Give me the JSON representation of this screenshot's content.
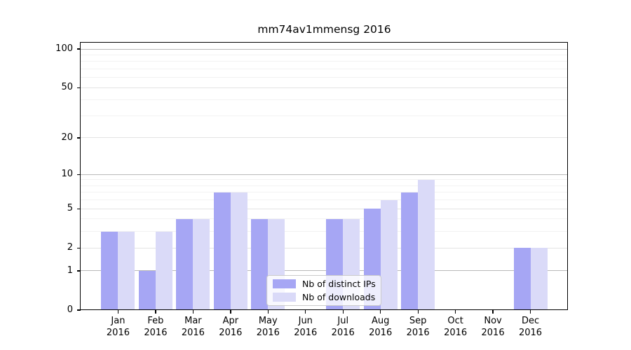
{
  "title": "mm74av1mmensg 2016",
  "chart_data": {
    "type": "bar",
    "title": "mm74av1mmensg 2016",
    "categories": [
      "Jan",
      "Feb",
      "Mar",
      "Apr",
      "May",
      "Jun",
      "Jul",
      "Aug",
      "Sep",
      "Oct",
      "Nov",
      "Dec"
    ],
    "category_year_line": "2016",
    "series": [
      {
        "name": "Nb of distinct IPs",
        "color": "#a6a6f4",
        "values": [
          3,
          1,
          4,
          7,
          4,
          0,
          4,
          5,
          7,
          0,
          0,
          2
        ]
      },
      {
        "name": "Nb of downloads",
        "color": "#dadaf8",
        "values": [
          3,
          3,
          4,
          7,
          4,
          0,
          4,
          6,
          9,
          0,
          0,
          2
        ]
      }
    ],
    "yscale": "log1p",
    "ylim": [
      0,
      112
    ],
    "yticks": [
      0,
      1,
      2,
      5,
      10,
      20,
      50,
      100
    ],
    "decade_gridlines": [
      1,
      10,
      100
    ],
    "major_gridlines": [
      2,
      5,
      20,
      50
    ],
    "minor_gridlines": [
      3,
      4,
      6,
      7,
      8,
      9,
      30,
      40,
      60,
      70,
      80,
      90
    ],
    "grid": true,
    "legend_position": "lower center",
    "colors": {
      "spine": "#000000",
      "decade_grid": "#b9b9b9",
      "major_grid": "#e3e3e3",
      "minor_grid": "#f2f2f2",
      "background": "#ffffff"
    }
  }
}
